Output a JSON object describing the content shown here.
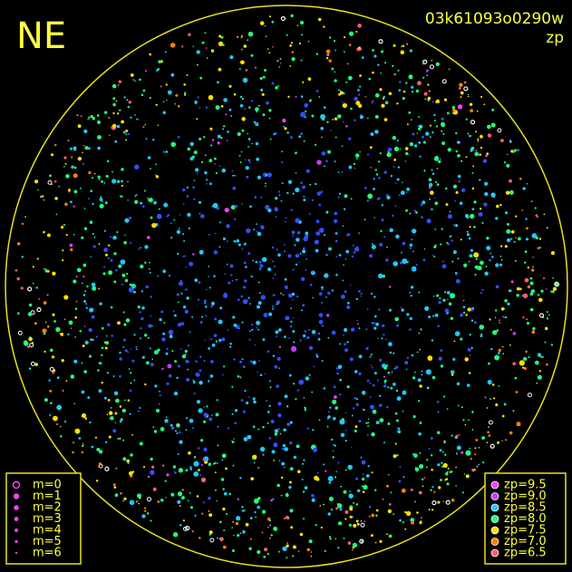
{
  "header": {
    "direction": "NE",
    "frame_id": "03k61093o0290w",
    "mode": "zp"
  },
  "legend_magnitude": {
    "items": [
      {
        "label": "m=0"
      },
      {
        "label": "m=1"
      },
      {
        "label": "m=2"
      },
      {
        "label": "m=3"
      },
      {
        "label": "m=4"
      },
      {
        "label": "m=5"
      },
      {
        "label": "m=6"
      }
    ]
  },
  "legend_zp": {
    "items": [
      {
        "label": "zp=9.5",
        "color": "#ff40ff"
      },
      {
        "label": "zp=9.0",
        "color": "#c040ff"
      },
      {
        "label": "zp=8.5",
        "color": "#20c8ff"
      },
      {
        "label": "zp=8.0",
        "color": "#20ff80"
      },
      {
        "label": "zp=7.5",
        "color": "#ffe000"
      },
      {
        "label": "zp=7.0",
        "color": "#ff8000"
      },
      {
        "label": "zp=6.5",
        "color": "#ff6070"
      }
    ]
  }
}
